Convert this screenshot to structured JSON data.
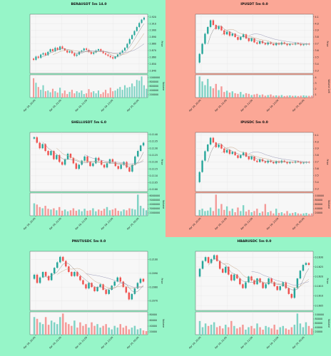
{
  "page": {
    "background": "#96f5c8"
  },
  "colors": {
    "up": "#26a69a",
    "down": "#ef5350",
    "upVol": "#7fd3c4",
    "downVol": "#f49a98",
    "ma1": "#8b8b8b",
    "ma2": "#c9a98a",
    "ma3": "#9a9ab8",
    "plotbg": "#f7f7f7"
  },
  "chart_data": [
    {
      "type": "candlestick",
      "title": "BERAUSDT 5m 14.0",
      "background": "#96f5c8",
      "ylabel": "Price",
      "vol_label": "Volume",
      "yticks": [
        "2.920",
        "2.910",
        "2.900",
        "2.890",
        "2.880",
        "2.870",
        "2.860",
        "2.850",
        "2.840"
      ],
      "ylim": [
        2.836,
        2.924
      ],
      "vol_ticks": [
        "1000000",
        "800000",
        "600000",
        "400000",
        "200000"
      ],
      "vol_max": 1100000,
      "x_labels": [
        "Apr 19, 20:00",
        "Apr 19, 21:00",
        "Apr 19, 22:00",
        "Apr 19, 23:00",
        "Apr 20, 00:00"
      ],
      "path": [
        2.858,
        2.856,
        2.861,
        2.859,
        2.864,
        2.866,
        2.863,
        2.868,
        2.872,
        2.869,
        2.874,
        2.871,
        2.876,
        2.873,
        2.87,
        2.867,
        2.869,
        2.866,
        2.862,
        2.864,
        2.868,
        2.87,
        2.873,
        2.871,
        2.868,
        2.865,
        2.867,
        2.87,
        2.872,
        2.869,
        2.866,
        2.864,
        2.862,
        2.86,
        2.858,
        2.861,
        2.864,
        2.867,
        2.87,
        2.874,
        2.88,
        2.887,
        2.893,
        2.899,
        2.905,
        2.911,
        2.916,
        2.919
      ],
      "vols": [
        0.55,
        0.42,
        0.3,
        0.22,
        0.35,
        0.18,
        0.2,
        0.15,
        0.25,
        0.18,
        0.14,
        0.28,
        0.12,
        0.2,
        0.1,
        0.16,
        0.22,
        0.12,
        0.18,
        0.14,
        0.2,
        0.1,
        0.12,
        0.24,
        0.15,
        0.18,
        0.12,
        0.2,
        0.1,
        0.15,
        0.22,
        0.12,
        0.28,
        0.18,
        0.2,
        0.25,
        0.3,
        0.22,
        0.35,
        0.28,
        0.3,
        0.4,
        0.32,
        0.5,
        0.48,
        0.6,
        0.35,
        0.25
      ]
    },
    {
      "type": "candlestick",
      "title": "IPUSDT 5m 0.0",
      "background": "#fba796",
      "ylabel": "Price",
      "vol_label": "Volume 1e6",
      "yticks": [
        "4.1",
        "4.0",
        "3.9",
        "3.8",
        "3.7",
        "3.6",
        "3.5",
        "3.4",
        "3.3"
      ],
      "ylim": [
        3.26,
        4.14
      ],
      "vol_ticks": [
        "4",
        "3",
        "2",
        "1"
      ],
      "vol_max": 4.6,
      "x_labels": [
        "Apr 19, 20:00",
        "Apr 19, 21:00",
        "Apr 19, 22:00",
        "Apr 19, 23:00",
        "Apr 20, 00:00"
      ],
      "path": [
        3.42,
        3.55,
        3.7,
        3.85,
        3.95,
        4.05,
        3.98,
        3.92,
        3.96,
        3.9,
        3.84,
        3.88,
        3.82,
        3.85,
        3.8,
        3.76,
        3.8,
        3.84,
        3.78,
        3.74,
        3.78,
        3.72,
        3.7,
        3.74,
        3.71,
        3.69,
        3.72,
        3.7,
        3.68,
        3.71,
        3.69,
        3.72,
        3.7,
        3.68,
        3.7,
        3.69,
        3.71,
        3.7,
        3.68,
        3.69,
        3.7,
        3.69
      ],
      "vols": [
        3.4,
        2.6,
        2.0,
        3.0,
        1.8,
        1.5,
        2.2,
        1.2,
        1.8,
        0.9,
        1.1,
        0.8,
        1.0,
        0.7,
        0.6,
        0.9,
        0.5,
        0.7,
        0.6,
        0.4,
        0.5,
        0.6,
        0.4,
        0.5,
        0.3,
        0.4,
        0.5,
        0.3,
        0.35,
        0.3,
        0.4,
        0.25,
        0.3,
        0.35,
        0.28,
        0.3,
        0.25,
        0.3,
        0.35,
        0.3,
        0.28,
        0.3
      ]
    },
    {
      "type": "candlestick",
      "title": "SHELLUSDT 5m 6.0",
      "background": "#96f5c8",
      "ylabel": "Price",
      "vol_label": "Volume",
      "yticks": [
        "0.1140",
        "0.1135",
        "0.1130",
        "0.1125",
        "0.1120",
        "0.1115",
        "0.1110",
        "0.1105",
        "0.1100"
      ],
      "ylim": [
        0.10985,
        0.11415
      ],
      "vol_ticks": [
        "6000000",
        "5000000",
        "4000000",
        "3000000",
        "2000000"
      ],
      "vol_max": 6500000,
      "x_labels": [
        "Apr 19, 20:00",
        "Apr 19, 21:00",
        "Apr 19, 22:00",
        "Apr 19, 23:00",
        "Apr 20, 00:00"
      ],
      "path": [
        0.1137,
        0.1138,
        0.1134,
        0.113,
        0.1133,
        0.1128,
        0.1125,
        0.1128,
        0.1122,
        0.1125,
        0.112,
        0.1118,
        0.1122,
        0.1126,
        0.1123,
        0.1119,
        0.1115,
        0.1118,
        0.1121,
        0.1124,
        0.112,
        0.1117,
        0.1119,
        0.1123,
        0.1121,
        0.1118,
        0.1116,
        0.1119,
        0.1122,
        0.112,
        0.1117,
        0.1115,
        0.1118,
        0.112,
        0.1116,
        0.1113,
        0.1118,
        0.1124,
        0.1128,
        0.1132,
        0.1134
      ],
      "vols": [
        0.5,
        0.45,
        0.35,
        0.3,
        0.4,
        0.28,
        0.25,
        0.3,
        0.22,
        0.35,
        0.2,
        0.25,
        0.18,
        0.22,
        0.3,
        0.2,
        0.25,
        0.18,
        0.28,
        0.2,
        0.22,
        0.3,
        0.18,
        0.25,
        0.2,
        0.28,
        0.35,
        0.22,
        0.25,
        0.3,
        0.2,
        0.18,
        0.25,
        0.22,
        0.3,
        0.28,
        0.25,
        0.85,
        0.4,
        0.3,
        0.22
      ]
    },
    {
      "type": "candlestick",
      "title": "IPUSDC 5m 0.0",
      "background": "#fba796",
      "ylabel": "Price",
      "vol_label": "Volume",
      "yticks": [
        "4.1",
        "4.0",
        "3.9",
        "3.8",
        "3.7",
        "3.6",
        "3.5",
        "3.4",
        "3.3"
      ],
      "ylim": [
        3.26,
        4.14
      ],
      "vol_ticks": [
        "100000",
        "80000",
        "60000",
        "40000",
        "20000"
      ],
      "vol_max": 110000,
      "x_labels": [
        "Apr 19, 20:00",
        "Apr 19, 21:00",
        "Apr 19, 22:00",
        "Apr 19, 23:00",
        "Apr 20, 00:00"
      ],
      "path": [
        3.4,
        3.55,
        3.72,
        3.86,
        3.96,
        4.06,
        3.99,
        3.92,
        3.96,
        3.9,
        3.84,
        3.88,
        3.82,
        3.85,
        3.8,
        3.76,
        3.8,
        3.84,
        3.78,
        3.74,
        3.78,
        3.72,
        3.7,
        3.74,
        3.71,
        3.69,
        3.72,
        3.7,
        3.68,
        3.71,
        3.69,
        3.72,
        3.7,
        3.68,
        3.7,
        3.69,
        3.71,
        3.7,
        3.68,
        3.69,
        3.7,
        3.69
      ],
      "vols": [
        0.25,
        0.3,
        0.2,
        0.22,
        0.35,
        0.2,
        0.9,
        0.3,
        0.5,
        0.25,
        0.4,
        0.2,
        0.3,
        0.15,
        0.35,
        0.2,
        0.45,
        0.18,
        0.25,
        0.15,
        0.2,
        0.3,
        0.12,
        0.18,
        0.5,
        0.15,
        0.2,
        0.1,
        0.3,
        0.12,
        0.15,
        0.1,
        0.2,
        0.1,
        0.12,
        0.15,
        0.1,
        0.08,
        0.1,
        0.12,
        0.08,
        0.1
      ]
    },
    {
      "type": "candlestick",
      "title": "PNUTUSDC 5m 0.0",
      "background": "#96f5c8",
      "ylabel": "Price",
      "vol_label": "Volume",
      "yticks": [
        "0.2100",
        "0.2090",
        "0.2080",
        "0.2070"
      ],
      "ylim": [
        0.2063,
        0.2106
      ],
      "vol_ticks": [
        "80000",
        "60000",
        "40000",
        "20000"
      ],
      "vol_max": 95000,
      "x_labels": [
        "Apr 19, 20:00",
        "Apr 19, 21:00",
        "Apr 19, 22:00",
        "Apr 19, 23:00",
        "Apr 20, 00:00"
      ],
      "path": [
        0.2086,
        0.2089,
        0.2083,
        0.2087,
        0.2091,
        0.2088,
        0.2085,
        0.209,
        0.2094,
        0.2098,
        0.2102,
        0.2099,
        0.2095,
        0.2091,
        0.2088,
        0.2091,
        0.2088,
        0.2085,
        0.2082,
        0.2079,
        0.2083,
        0.208,
        0.2077,
        0.208,
        0.2082,
        0.2078,
        0.2075,
        0.2078,
        0.2081,
        0.2084,
        0.2087,
        0.2084,
        0.208,
        0.2076,
        0.2071,
        0.2075,
        0.2079,
        0.2083,
        0.2086,
        0.2084
      ],
      "vols": [
        0.5,
        0.45,
        0.35,
        0.3,
        0.5,
        0.28,
        0.4,
        0.35,
        0.3,
        0.5,
        0.6,
        0.35,
        0.3,
        0.25,
        0.4,
        0.2,
        0.35,
        0.25,
        0.3,
        0.2,
        0.35,
        0.25,
        0.3,
        0.2,
        0.25,
        0.3,
        0.2,
        0.15,
        0.25,
        0.2,
        0.3,
        0.2,
        0.25,
        0.15,
        0.2,
        0.25,
        0.15,
        0.18,
        0.12,
        0.1
      ]
    },
    {
      "type": "candlestick",
      "title": "HBARUSDC 5m 0.0",
      "background": "#96f5c8",
      "ylabel": "Price",
      "vol_label": "Volume",
      "yticks": [
        "0.1630",
        "0.1625",
        "0.1620",
        "0.1615",
        "0.1610",
        "0.1605"
      ],
      "ylim": [
        0.16025,
        0.1633
      ],
      "vol_ticks": [
        "100000",
        "80000",
        "60000",
        "40000",
        "20000"
      ],
      "vol_max": 115000,
      "x_labels": [
        "Apr 19, 20:00",
        "Apr 19, 21:00",
        "Apr 19, 22:00",
        "Apr 19, 23:00",
        "Apr 20, 00:00"
      ],
      "path": [
        0.162,
        0.1624,
        0.1628,
        0.163,
        0.1627,
        0.1629,
        0.1631,
        0.1628,
        0.1624,
        0.1622,
        0.1625,
        0.1621,
        0.1618,
        0.1621,
        0.1619,
        0.1616,
        0.1614,
        0.1617,
        0.162,
        0.1618,
        0.1616,
        0.1619,
        0.1617,
        0.1614,
        0.1616,
        0.1619,
        0.1617,
        0.1615,
        0.1613,
        0.1615,
        0.1617,
        0.1614,
        0.1611,
        0.1609,
        0.1614,
        0.1619,
        0.1623,
        0.1626,
        0.1627,
        0.1626
      ],
      "vols": [
        0.55,
        0.3,
        0.45,
        0.35,
        0.4,
        0.5,
        0.3,
        0.35,
        0.25,
        0.4,
        0.3,
        0.55,
        0.35,
        0.25,
        0.3,
        0.4,
        0.2,
        0.3,
        0.35,
        0.25,
        0.45,
        0.3,
        0.2,
        0.35,
        0.3,
        0.25,
        0.4,
        0.2,
        0.3,
        0.35,
        0.25,
        0.2,
        0.3,
        0.4,
        0.85,
        0.45,
        0.3,
        0.5,
        0.35,
        0.25
      ]
    }
  ]
}
